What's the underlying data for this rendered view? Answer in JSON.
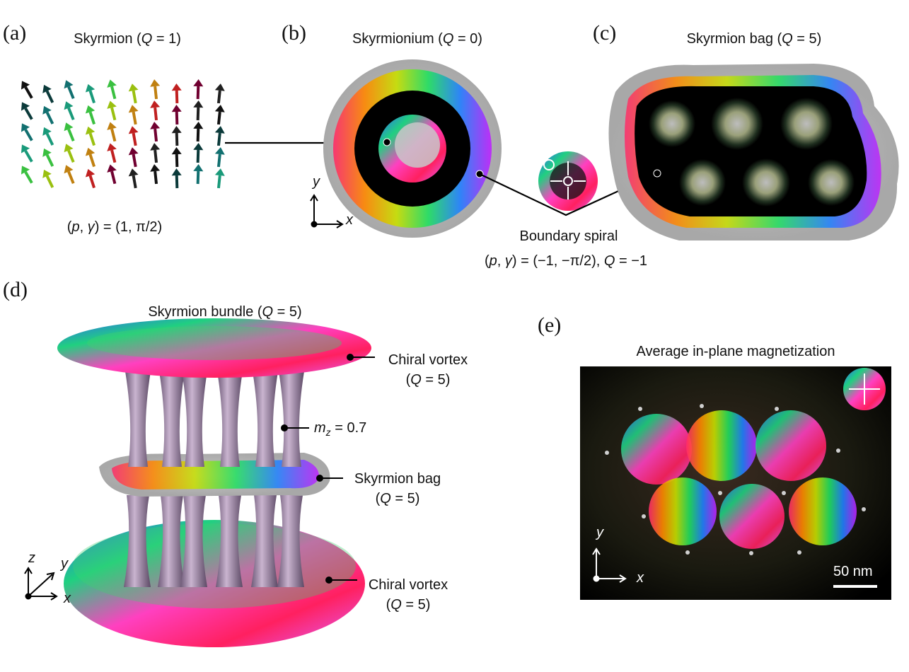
{
  "panels": {
    "a": {
      "letter": "(a)",
      "title_pre": "Skyrmion (",
      "title_q": "Q",
      "title_post": " = 1)",
      "params_p": "p",
      "params_mid": ", ",
      "params_g": "γ",
      "params_post": ") = (1, π/2)",
      "params_open": "("
    },
    "b": {
      "letter": "(b)",
      "title_pre": "Skyrmionium (",
      "title_q": "Q",
      "title_post": " = 0)",
      "axis_x": "x",
      "axis_y": "y"
    },
    "c": {
      "letter": "(c)",
      "title_pre": "Skyrmion bag (",
      "title_q": "Q",
      "title_post": " = 5)"
    },
    "boundary": {
      "label": "Boundary spiral",
      "p_open": "(",
      "p": "p",
      "sep": ", ",
      "g": "γ",
      "rest": ") = (−1, −π/2), ",
      "q": "Q",
      "qval": " = −1"
    },
    "d": {
      "letter": "(d)",
      "title_pre": "Skyrmion bundle (",
      "title_q": "Q",
      "title_post": " = 5)",
      "top_vortex": "Chiral vortex",
      "top_vortex_q_open": "(",
      "top_vortex_q": "Q",
      "top_vortex_q_post": " = 5)",
      "mz_m": "m",
      "mz_sub": "z",
      "mz_val": " = 0.7",
      "bag": "Skyrmion bag",
      "bag_q_open": "(",
      "bag_q": "Q",
      "bag_q_post": " = 5)",
      "bottom_vortex": "Chiral vortex",
      "bottom_vortex_q_open": "(",
      "bottom_vortex_q": "Q",
      "bottom_vortex_q_post": " = 5)",
      "axis_x": "x",
      "axis_y": "y",
      "axis_z": "z"
    },
    "e": {
      "letter": "(e)",
      "title": "Average in-plane magnetization",
      "scale": "50 nm",
      "axis_x": "x",
      "axis_y": "y"
    }
  },
  "colors": {
    "text": "#111111",
    "leader": "#000000",
    "halo": "#b5b5b5"
  }
}
